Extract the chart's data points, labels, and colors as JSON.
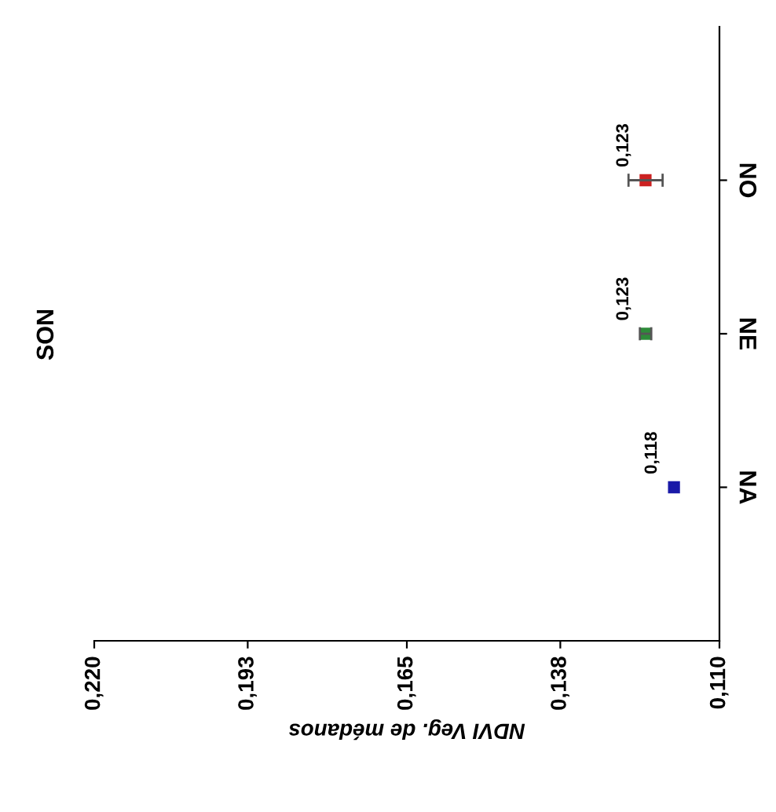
{
  "chart_data": {
    "type": "scatter",
    "orientation": "horizontal",
    "title": "SON",
    "xlabel": "NDVI Veg. de médanos",
    "categories": [
      "NO",
      "NE",
      "NA"
    ],
    "values": [
      0.123,
      0.123,
      0.118
    ],
    "colors": [
      "#cc2222",
      "#2e8b3a",
      "#1a1aa8"
    ],
    "errors": [
      0.003,
      0.001,
      null
    ],
    "value_labels": [
      "0,123",
      "0,123",
      "0,118"
    ],
    "xlim": [
      0.22,
      0.11
    ],
    "xticks": [
      {
        "value": 0.22,
        "label": "0,220"
      },
      {
        "value": 0.193,
        "label": "0,193"
      },
      {
        "value": 0.165,
        "label": "0,165"
      },
      {
        "value": 0.138,
        "label": "0,138"
      },
      {
        "value": 0.11,
        "label": "0,110"
      }
    ],
    "marker": "square",
    "grid": false,
    "legend": false
  }
}
